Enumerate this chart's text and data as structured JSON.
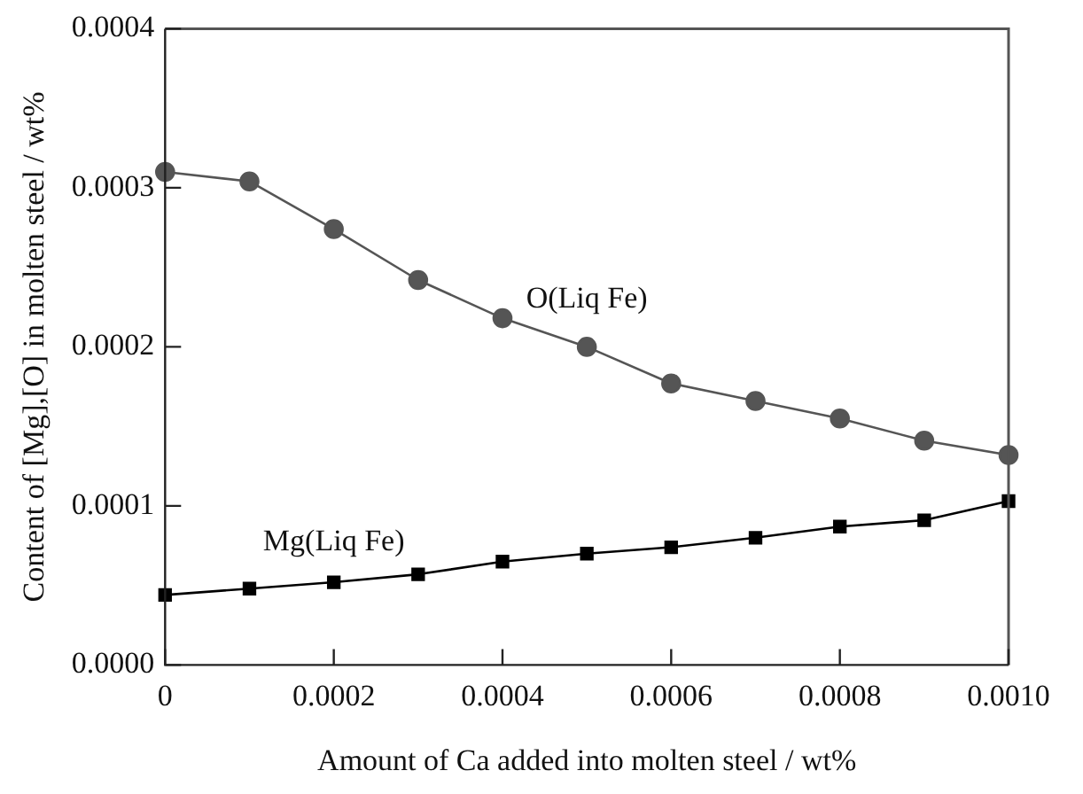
{
  "chart_data": {
    "type": "line",
    "xlabel": "Amount of Ca added into molten steel / wt%",
    "ylabel": "Content of [Mg],[O] in molten steel / wt%",
    "x": [
      0,
      0.0001,
      0.0002,
      0.0003,
      0.0004,
      0.0005,
      0.0006,
      0.0007,
      0.0008,
      0.0009,
      0.001
    ],
    "series": [
      {
        "name": "O(Liq Fe)",
        "color": "#555555",
        "marker": "circle",
        "values": [
          0.00031,
          0.000304,
          0.000274,
          0.000242,
          0.000218,
          0.0002,
          0.000177,
          0.000166,
          0.000155,
          0.000141,
          0.000132
        ]
      },
      {
        "name": "Mg(Liq Fe)",
        "color": "#000000",
        "marker": "square",
        "values": [
          4.4e-05,
          4.8e-05,
          5.2e-05,
          5.7e-05,
          6.5e-05,
          7e-05,
          7.4e-05,
          8e-05,
          8.7e-05,
          9.1e-05,
          0.000103
        ]
      }
    ],
    "xlim": [
      0,
      0.001
    ],
    "xticks": [
      0,
      {
        "value": 0.0002,
        "label": "0.0002"
      },
      {
        "value": 0.0004,
        "label": "0.0004"
      },
      {
        "value": 0.0006,
        "label": "0.0006"
      },
      {
        "value": 0.0008,
        "label": "0.0008"
      },
      {
        "value": 0.001,
        "label": "0.0010"
      }
    ],
    "ylim": [
      0,
      0.0004
    ],
    "yticks": [
      {
        "value": 0,
        "label": "0.0000"
      },
      {
        "value": 0.0001,
        "label": "0.0001"
      },
      {
        "value": 0.0002,
        "label": "0.0002"
      },
      {
        "value": 0.0003,
        "label": "0.0003"
      },
      {
        "value": 0.0004,
        "label": "0.0004"
      }
    ],
    "legend": false,
    "line_style": "solid"
  }
}
